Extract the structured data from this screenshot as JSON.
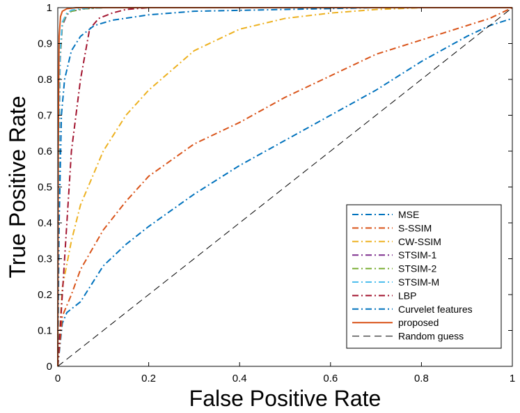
{
  "chart_data": {
    "type": "line",
    "title": "",
    "xlabel": "False Positive Rate",
    "ylabel": "True Positive Rate",
    "xlim": [
      0,
      1
    ],
    "ylim": [
      0,
      1
    ],
    "xticks": [
      "0",
      "0.2",
      "0.4",
      "0.6",
      "0.8",
      "1"
    ],
    "xtick_values": [
      0,
      0.2,
      0.4,
      0.6,
      0.8,
      1
    ],
    "yticks": [
      "0",
      "0.1",
      "0.2",
      "0.3",
      "0.4",
      "0.5",
      "0.6",
      "0.7",
      "0.8",
      "0.9",
      "1"
    ],
    "ytick_values": [
      0,
      0.1,
      0.2,
      0.3,
      0.4,
      0.5,
      0.6,
      0.7,
      0.8,
      0.9,
      1
    ],
    "grid": false,
    "legend_position": "bottom-right",
    "series": [
      {
        "name": "MSE",
        "color": "#0072BD",
        "dash": "dashdot",
        "points": [
          [
            0,
            0
          ],
          [
            0.01,
            0.12
          ],
          [
            0.02,
            0.15
          ],
          [
            0.05,
            0.18
          ],
          [
            0.1,
            0.28
          ],
          [
            0.15,
            0.34
          ],
          [
            0.2,
            0.39
          ],
          [
            0.3,
            0.48
          ],
          [
            0.4,
            0.56
          ],
          [
            0.5,
            0.63
          ],
          [
            0.6,
            0.7
          ],
          [
            0.7,
            0.77
          ],
          [
            0.8,
            0.85
          ],
          [
            0.9,
            0.92
          ],
          [
            0.95,
            0.95
          ],
          [
            1,
            0.97
          ]
        ]
      },
      {
        "name": "S-SSIM",
        "color": "#D95319",
        "dash": "dashdot",
        "points": [
          [
            0,
            0
          ],
          [
            0.01,
            0.14
          ],
          [
            0.03,
            0.2
          ],
          [
            0.05,
            0.27
          ],
          [
            0.1,
            0.38
          ],
          [
            0.15,
            0.46
          ],
          [
            0.2,
            0.53
          ],
          [
            0.3,
            0.62
          ],
          [
            0.4,
            0.68
          ],
          [
            0.5,
            0.75
          ],
          [
            0.6,
            0.81
          ],
          [
            0.7,
            0.87
          ],
          [
            0.8,
            0.91
          ],
          [
            0.9,
            0.95
          ],
          [
            0.95,
            0.97
          ],
          [
            1,
            1
          ]
        ]
      },
      {
        "name": "CW-SSIM",
        "color": "#EDB120",
        "dash": "dashdot",
        "points": [
          [
            0,
            0
          ],
          [
            0.01,
            0.22
          ],
          [
            0.03,
            0.35
          ],
          [
            0.05,
            0.45
          ],
          [
            0.1,
            0.6
          ],
          [
            0.15,
            0.7
          ],
          [
            0.2,
            0.77
          ],
          [
            0.3,
            0.88
          ],
          [
            0.4,
            0.94
          ],
          [
            0.5,
            0.97
          ],
          [
            0.6,
            0.985
          ],
          [
            0.7,
            0.995
          ],
          [
            0.8,
            1
          ],
          [
            1,
            1
          ]
        ]
      },
      {
        "name": "STSIM-1",
        "color": "#7E2F8E",
        "dash": "dashdot",
        "points": [
          [
            0,
            0
          ],
          [
            0.002,
            0.5
          ],
          [
            0.005,
            0.85
          ],
          [
            0.01,
            0.95
          ],
          [
            0.02,
            0.98
          ],
          [
            0.03,
            0.99
          ],
          [
            0.06,
            0.997
          ],
          [
            0.1,
            1
          ],
          [
            1,
            1
          ]
        ]
      },
      {
        "name": "STSIM-2",
        "color": "#77AC30",
        "dash": "dashdot",
        "points": [
          [
            0,
            0
          ],
          [
            0.002,
            0.52
          ],
          [
            0.005,
            0.86
          ],
          [
            0.01,
            0.955
          ],
          [
            0.02,
            0.982
          ],
          [
            0.03,
            0.99
          ],
          [
            0.06,
            0.997
          ],
          [
            0.1,
            1
          ],
          [
            1,
            1
          ]
        ]
      },
      {
        "name": "STSIM-M",
        "color": "#4DBEEE",
        "dash": "dashdot",
        "points": [
          [
            0,
            0
          ],
          [
            0.002,
            0.55
          ],
          [
            0.005,
            0.88
          ],
          [
            0.01,
            0.96
          ],
          [
            0.02,
            0.985
          ],
          [
            0.03,
            0.993
          ],
          [
            0.06,
            0.998
          ],
          [
            0.1,
            1
          ],
          [
            1,
            1
          ]
        ]
      },
      {
        "name": "LBP",
        "color": "#A2142F",
        "dash": "dashdot",
        "points": [
          [
            0,
            0
          ],
          [
            0.005,
            0.1
          ],
          [
            0.01,
            0.2
          ],
          [
            0.02,
            0.4
          ],
          [
            0.03,
            0.6
          ],
          [
            0.05,
            0.8
          ],
          [
            0.07,
            0.94
          ],
          [
            0.09,
            0.97
          ],
          [
            0.12,
            0.985
          ],
          [
            0.15,
            0.995
          ],
          [
            0.2,
            1
          ],
          [
            1,
            1
          ]
        ]
      },
      {
        "name": "Curvelet features",
        "color": "#0072BD",
        "dash": "dashdot",
        "points": [
          [
            0,
            0
          ],
          [
            0.003,
            0.4
          ],
          [
            0.008,
            0.7
          ],
          [
            0.015,
            0.8
          ],
          [
            0.03,
            0.88
          ],
          [
            0.05,
            0.92
          ],
          [
            0.08,
            0.95
          ],
          [
            0.12,
            0.965
          ],
          [
            0.2,
            0.98
          ],
          [
            0.3,
            0.99
          ],
          [
            0.5,
            0.995
          ],
          [
            0.7,
            1
          ],
          [
            1,
            1
          ]
        ]
      },
      {
        "name": "proposed",
        "color": "#D95319",
        "dash": "solid",
        "points": [
          [
            0,
            0
          ],
          [
            0.001,
            0.6
          ],
          [
            0.003,
            0.92
          ],
          [
            0.006,
            0.975
          ],
          [
            0.01,
            0.99
          ],
          [
            0.02,
            0.997
          ],
          [
            0.04,
            1
          ],
          [
            1,
            1
          ]
        ]
      },
      {
        "name": "Random guess",
        "color": "#000000",
        "dash": "dashed",
        "points": [
          [
            0,
            0
          ],
          [
            1,
            1
          ]
        ]
      }
    ]
  }
}
